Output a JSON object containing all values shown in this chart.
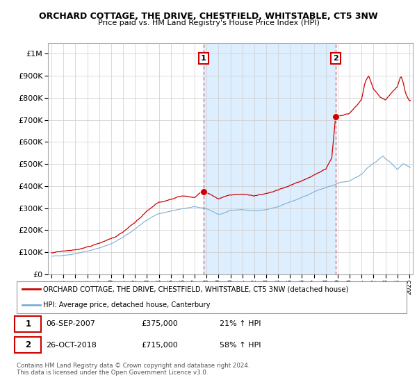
{
  "title": "ORCHARD COTTAGE, THE DRIVE, CHESTFIELD, WHITSTABLE, CT5 3NW",
  "subtitle": "Price paid vs. HM Land Registry's House Price Index (HPI)",
  "red_color": "#cc0000",
  "blue_color": "#7bafd4",
  "shade_color": "#ddeeff",
  "purchase1_year": 2007.75,
  "purchase1_price": 375000,
  "purchase2_year": 2018.83,
  "purchase2_price": 715000,
  "legend_label_red": "ORCHARD COTTAGE, THE DRIVE, CHESTFIELD, WHITSTABLE, CT5 3NW (detached house)",
  "legend_label_blue": "HPI: Average price, detached house, Canterbury",
  "footer1": "Contains HM Land Registry data © Crown copyright and database right 2024.",
  "footer2": "This data is licensed under the Open Government Licence v3.0.",
  "table_row1": [
    "1",
    "06-SEP-2007",
    "£375,000",
    "21% ↑ HPI"
  ],
  "table_row2": [
    "2",
    "26-OCT-2018",
    "£715,000",
    "58% ↑ HPI"
  ],
  "ytick_vals": [
    0,
    100000,
    200000,
    300000,
    400000,
    500000,
    600000,
    700000,
    800000,
    900000,
    1000000
  ],
  "ylim": [
    0,
    1050000
  ],
  "xlim_start": 1994.7,
  "xlim_end": 2025.3
}
